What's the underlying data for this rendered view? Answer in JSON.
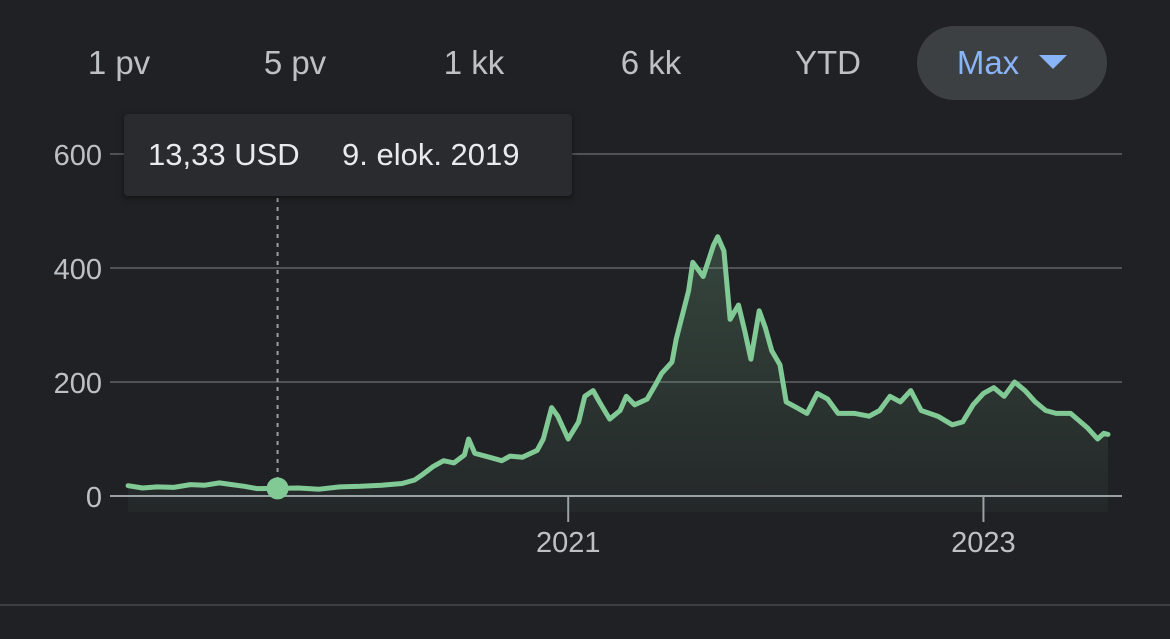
{
  "ranges": [
    {
      "label": "1 pv"
    },
    {
      "label": "5 pv"
    },
    {
      "label": "1 kk"
    },
    {
      "label": "6 kk"
    },
    {
      "label": "YTD"
    },
    {
      "label": "Max",
      "selected": true
    }
  ],
  "tooltip": {
    "value": "13,33 USD",
    "date": "9. elok. 2019"
  },
  "colors": {
    "line": "#81c995",
    "grid": "#5f6368",
    "axis_text": "#bdc1c6",
    "accent": "#8ab4f8"
  },
  "chart_data": {
    "type": "area",
    "title": "",
    "xlabel": "",
    "ylabel": "",
    "y_ticks": [
      0,
      200,
      400,
      600
    ],
    "x_ticks": [
      {
        "label": "2021",
        "x": 2021.0
      },
      {
        "label": "2023",
        "x": 2023.0
      }
    ],
    "ylim": [
      0,
      600
    ],
    "xlim": [
      2018.87,
      2023.6
    ],
    "grid": true,
    "highlight": {
      "x": 2019.6,
      "y": 13.33
    },
    "series": [
      {
        "values": [
          [
            2018.88,
            18
          ],
          [
            2018.95,
            14
          ],
          [
            2019.02,
            16
          ],
          [
            2019.1,
            15
          ],
          [
            2019.18,
            20
          ],
          [
            2019.25,
            19
          ],
          [
            2019.32,
            23
          ],
          [
            2019.38,
            20
          ],
          [
            2019.44,
            17
          ],
          [
            2019.5,
            13
          ],
          [
            2019.6,
            13.33
          ],
          [
            2019.7,
            14
          ],
          [
            2019.8,
            12
          ],
          [
            2019.9,
            16
          ],
          [
            2020.0,
            17
          ],
          [
            2020.1,
            19
          ],
          [
            2020.2,
            22
          ],
          [
            2020.26,
            28
          ],
          [
            2020.3,
            38
          ],
          [
            2020.35,
            52
          ],
          [
            2020.4,
            62
          ],
          [
            2020.45,
            58
          ],
          [
            2020.5,
            72
          ],
          [
            2020.52,
            100
          ],
          [
            2020.55,
            75
          ],
          [
            2020.62,
            68
          ],
          [
            2020.68,
            62
          ],
          [
            2020.72,
            70
          ],
          [
            2020.78,
            68
          ],
          [
            2020.85,
            80
          ],
          [
            2020.88,
            100
          ],
          [
            2020.92,
            155
          ],
          [
            2020.95,
            140
          ],
          [
            2021.0,
            100
          ],
          [
            2021.05,
            130
          ],
          [
            2021.08,
            175
          ],
          [
            2021.12,
            185
          ],
          [
            2021.15,
            165
          ],
          [
            2021.2,
            135
          ],
          [
            2021.25,
            150
          ],
          [
            2021.28,
            175
          ],
          [
            2021.32,
            160
          ],
          [
            2021.38,
            170
          ],
          [
            2021.42,
            195
          ],
          [
            2021.45,
            215
          ],
          [
            2021.5,
            235
          ],
          [
            2021.52,
            275
          ],
          [
            2021.58,
            360
          ],
          [
            2021.6,
            410
          ],
          [
            2021.65,
            385
          ],
          [
            2021.7,
            440
          ],
          [
            2021.72,
            455
          ],
          [
            2021.75,
            430
          ],
          [
            2021.78,
            310
          ],
          [
            2021.82,
            335
          ],
          [
            2021.85,
            290
          ],
          [
            2021.88,
            240
          ],
          [
            2021.92,
            325
          ],
          [
            2021.95,
            295
          ],
          [
            2021.98,
            255
          ],
          [
            2022.02,
            230
          ],
          [
            2022.05,
            165
          ],
          [
            2022.1,
            155
          ],
          [
            2022.15,
            145
          ],
          [
            2022.2,
            180
          ],
          [
            2022.25,
            170
          ],
          [
            2022.3,
            145
          ],
          [
            2022.38,
            145
          ],
          [
            2022.45,
            140
          ],
          [
            2022.5,
            150
          ],
          [
            2022.55,
            175
          ],
          [
            2022.6,
            165
          ],
          [
            2022.65,
            185
          ],
          [
            2022.7,
            150
          ],
          [
            2022.78,
            140
          ],
          [
            2022.85,
            125
          ],
          [
            2022.9,
            130
          ],
          [
            2022.95,
            160
          ],
          [
            2023.0,
            180
          ],
          [
            2023.05,
            190
          ],
          [
            2023.1,
            175
          ],
          [
            2023.15,
            200
          ],
          [
            2023.2,
            185
          ],
          [
            2023.25,
            165
          ],
          [
            2023.3,
            150
          ],
          [
            2023.35,
            145
          ],
          [
            2023.42,
            145
          ],
          [
            2023.5,
            120
          ],
          [
            2023.55,
            100
          ],
          [
            2023.58,
            110
          ],
          [
            2023.6,
            108
          ]
        ]
      }
    ]
  }
}
